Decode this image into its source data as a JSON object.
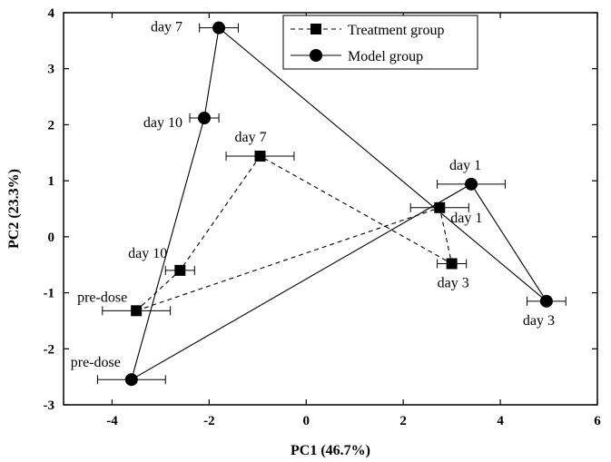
{
  "chart_data": {
    "type": "line",
    "xlabel": "PC1 (46.7%)",
    "ylabel": "PC2 (23.3%)",
    "xlim": [
      -5,
      6
    ],
    "ylim": [
      -3,
      4
    ],
    "xticks": [
      -4,
      -2,
      0,
      2,
      4,
      6
    ],
    "yticks": [
      -3,
      -2,
      -1,
      0,
      1,
      2,
      3,
      4
    ],
    "legend_position": "top-right",
    "series": [
      {
        "name": "Treatment group",
        "marker": "square",
        "line_style": "dashed",
        "points": [
          {
            "label": "pre-dose",
            "x": -3.5,
            "y": -1.32,
            "xerr": 0.7
          },
          {
            "label": "day 1",
            "x": 2.75,
            "y": 0.52,
            "xerr": 0.6
          },
          {
            "label": "day 3",
            "x": 3.0,
            "y": -0.48,
            "xerr": 0.3
          },
          {
            "label": "day 7",
            "x": -0.95,
            "y": 1.44,
            "xerr": 0.7
          },
          {
            "label": "day 10",
            "x": -2.6,
            "y": -0.6,
            "xerr": 0.3
          }
        ]
      },
      {
        "name": "Model group",
        "marker": "circle",
        "line_style": "solid",
        "points": [
          {
            "label": "pre-dose",
            "x": -3.6,
            "y": -2.55,
            "xerr": 0.7
          },
          {
            "label": "day 1",
            "x": 3.4,
            "y": 0.94,
            "xerr": 0.7
          },
          {
            "label": "day 3",
            "x": 4.95,
            "y": -1.15,
            "xerr": 0.4
          },
          {
            "label": "day 7",
            "x": -1.8,
            "y": 3.73,
            "xerr": 0.4
          },
          {
            "label": "day 10",
            "x": -2.1,
            "y": 2.12,
            "xerr": 0.3
          }
        ]
      }
    ]
  }
}
